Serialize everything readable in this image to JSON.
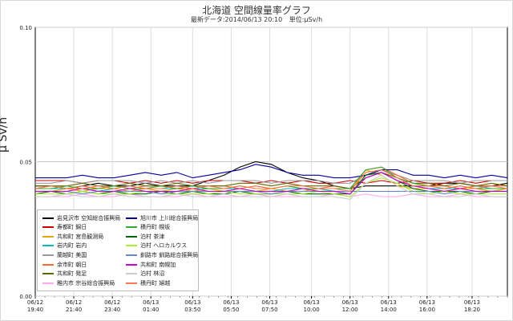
{
  "window": {
    "title": "北海道 空間線量率グラフ",
    "subtitle_latest": "最新データ:2014/06/13 20:10",
    "subtitle_unit": "単位:μSv/h"
  },
  "chart_data": {
    "type": "line",
    "title": "北海道 空間線量率グラフ",
    "ylabel": "μ Sv/h",
    "ylim": [
      0,
      0.1
    ],
    "yticks": [
      "0.10",
      "0.05",
      "0.00"
    ],
    "ytick_values": [
      0.1,
      0.05,
      0.0
    ],
    "xrange_minutes": [
      0,
      1470
    ],
    "xticks": [
      {
        "date": "06/12",
        "time": "19:40"
      },
      {
        "date": "06/12",
        "time": "21:40"
      },
      {
        "date": "06/12",
        "time": "23:40"
      },
      {
        "date": "06/13",
        "time": "01:40"
      },
      {
        "date": "06/13",
        "time": "03:50"
      },
      {
        "date": "06/13",
        "time": "05:50"
      },
      {
        "date": "06/13",
        "time": "07:50"
      },
      {
        "date": "06/13",
        "time": "10:00"
      },
      {
        "date": "06/13",
        "time": "12:00"
      },
      {
        "date": "06/13",
        "time": "14:00"
      },
      {
        "date": "06/13",
        "time": "16:00"
      },
      {
        "date": "06/13",
        "time": "18:20"
      }
    ],
    "xtick_minutes": [
      0,
      120,
      240,
      360,
      490,
      610,
      730,
      860,
      980,
      1100,
      1220,
      1360
    ],
    "grid": true,
    "legend_position": "bottom-left",
    "series": [
      {
        "name": "岩見沢市 空知総合振興局",
        "color": "#000000",
        "values": [
          0.041,
          0.041,
          0.04,
          0.041,
          0.042,
          0.041,
          0.041,
          0.042,
          0.041,
          0.041,
          0.041,
          0.043,
          0.045,
          0.048,
          0.05,
          0.049,
          0.046,
          0.044,
          0.043,
          0.041,
          0.04,
          0.041,
          0.041,
          0.041,
          0.041,
          0.041,
          0.042,
          0.042,
          0.041,
          0.041,
          0.042
        ]
      },
      {
        "name": "寿都町 錦日",
        "color": "#cc0000",
        "values": [
          0.043,
          0.043,
          0.043,
          0.042,
          0.043,
          0.043,
          0.042,
          0.043,
          0.042,
          0.043,
          0.042,
          0.043,
          0.043,
          0.043,
          0.042,
          0.043,
          0.042,
          0.043,
          0.042,
          0.042,
          0.043,
          0.042,
          0.043,
          0.042,
          0.043,
          0.042,
          0.042,
          0.043,
          0.042,
          0.043,
          0.043
        ]
      },
      {
        "name": "共和町 宮島観測局",
        "color": "#e6a800",
        "values": [
          0.039,
          0.039,
          0.04,
          0.039,
          0.04,
          0.04,
          0.039,
          0.04,
          0.039,
          0.04,
          0.039,
          0.04,
          0.039,
          0.039,
          0.039,
          0.04,
          0.039,
          0.039,
          0.04,
          0.039,
          0.039,
          0.047,
          0.045,
          0.041,
          0.04,
          0.04,
          0.039,
          0.04,
          0.04,
          0.039,
          0.04
        ]
      },
      {
        "name": "岩内町 岩内",
        "color": "#00bbbb",
        "values": [
          0.04,
          0.04,
          0.04,
          0.04,
          0.039,
          0.04,
          0.041,
          0.04,
          0.04,
          0.04,
          0.04,
          0.04,
          0.04,
          0.04,
          0.039,
          0.039,
          0.04,
          0.04,
          0.04,
          0.039,
          0.038,
          0.044,
          0.046,
          0.043,
          0.041,
          0.04,
          0.04,
          0.04,
          0.041,
          0.04,
          0.04
        ]
      },
      {
        "name": "蘭越町 美国",
        "color": "#999999",
        "values": [
          0.042,
          0.042,
          0.043,
          0.042,
          0.043,
          0.043,
          0.043,
          0.042,
          0.043,
          0.042,
          0.043,
          0.042,
          0.043,
          0.043,
          0.043,
          0.042,
          0.043,
          0.043,
          0.043,
          0.042,
          0.042,
          0.045,
          0.047,
          0.045,
          0.043,
          0.043,
          0.043,
          0.042,
          0.043,
          0.043,
          0.043
        ]
      },
      {
        "name": "余市町 朝日",
        "color": "#ff6633",
        "values": [
          0.04,
          0.041,
          0.04,
          0.041,
          0.04,
          0.041,
          0.04,
          0.041,
          0.041,
          0.04,
          0.04,
          0.041,
          0.041,
          0.04,
          0.041,
          0.04,
          0.041,
          0.04,
          0.04,
          0.041,
          0.04,
          0.047,
          0.048,
          0.045,
          0.042,
          0.041,
          0.041,
          0.04,
          0.041,
          0.041,
          0.041
        ]
      },
      {
        "name": "共和町 発足",
        "color": "#666600",
        "values": [
          0.041,
          0.041,
          0.041,
          0.042,
          0.041,
          0.041,
          0.042,
          0.041,
          0.041,
          0.042,
          0.041,
          0.041,
          0.041,
          0.042,
          0.042,
          0.041,
          0.042,
          0.041,
          0.041,
          0.041,
          0.04,
          0.044,
          0.046,
          0.044,
          0.042,
          0.042,
          0.041,
          0.042,
          0.041,
          0.042,
          0.041
        ]
      },
      {
        "name": "稚内市 宗谷総合振興局",
        "color": "#ffaaee",
        "values": [
          0.037,
          0.037,
          0.037,
          0.038,
          0.037,
          0.037,
          0.038,
          0.037,
          0.037,
          0.037,
          0.038,
          0.037,
          0.037,
          0.037,
          0.038,
          0.037,
          0.037,
          0.037,
          0.037,
          0.038,
          0.037,
          0.038,
          0.037,
          0.037,
          0.038,
          0.037,
          0.037,
          0.038,
          0.037,
          0.037,
          0.037
        ]
      },
      {
        "name": "旭川市 上川総合振興局",
        "color": "#000099",
        "values": [
          0.044,
          0.044,
          0.044,
          0.045,
          0.044,
          0.044,
          0.045,
          0.046,
          0.045,
          0.046,
          0.044,
          0.045,
          0.046,
          0.047,
          0.049,
          0.048,
          0.046,
          0.045,
          0.045,
          0.044,
          0.044,
          0.045,
          0.047,
          0.047,
          0.045,
          0.045,
          0.044,
          0.045,
          0.044,
          0.045,
          0.044
        ]
      },
      {
        "name": "積丹町 幌坂",
        "color": "#33aa33",
        "values": [
          0.04,
          0.04,
          0.041,
          0.04,
          0.04,
          0.041,
          0.04,
          0.04,
          0.041,
          0.04,
          0.041,
          0.04,
          0.04,
          0.041,
          0.04,
          0.04,
          0.041,
          0.04,
          0.04,
          0.04,
          0.04,
          0.047,
          0.048,
          0.044,
          0.042,
          0.041,
          0.04,
          0.041,
          0.04,
          0.04,
          0.04
        ]
      },
      {
        "name": "泊村 茶津",
        "color": "#006600",
        "values": [
          0.038,
          0.039,
          0.038,
          0.039,
          0.038,
          0.039,
          0.038,
          0.038,
          0.039,
          0.038,
          0.039,
          0.038,
          0.038,
          0.039,
          0.038,
          0.038,
          0.039,
          0.038,
          0.038,
          0.038,
          0.038,
          0.045,
          0.046,
          0.043,
          0.04,
          0.039,
          0.039,
          0.039,
          0.038,
          0.039,
          0.039
        ]
      },
      {
        "name": "泊村 ヘロカルウス",
        "color": "#aaee33",
        "values": [
          0.038,
          0.038,
          0.038,
          0.039,
          0.038,
          0.038,
          0.038,
          0.039,
          0.038,
          0.038,
          0.038,
          0.038,
          0.039,
          0.038,
          0.038,
          0.038,
          0.038,
          0.038,
          0.039,
          0.038,
          0.037,
          0.042,
          0.044,
          0.042,
          0.039,
          0.038,
          0.039,
          0.038,
          0.038,
          0.038,
          0.038
        ]
      },
      {
        "name": "釧路市 釧路総合振興局",
        "color": "#6688cc",
        "values": [
          0.039,
          0.039,
          0.039,
          0.038,
          0.039,
          0.039,
          0.039,
          0.039,
          0.038,
          0.039,
          0.039,
          0.039,
          0.039,
          0.039,
          0.039,
          0.038,
          0.039,
          0.039,
          0.039,
          0.039,
          0.039,
          0.039,
          0.039,
          0.039,
          0.039,
          0.039,
          0.038,
          0.039,
          0.039,
          0.039,
          0.039
        ]
      },
      {
        "name": "共和町 南幌加",
        "color": "#cc00cc",
        "values": [
          0.039,
          0.039,
          0.039,
          0.04,
          0.039,
          0.039,
          0.04,
          0.039,
          0.039,
          0.039,
          0.04,
          0.039,
          0.039,
          0.04,
          0.039,
          0.039,
          0.039,
          0.04,
          0.039,
          0.039,
          0.038,
          0.044,
          0.046,
          0.043,
          0.041,
          0.04,
          0.039,
          0.04,
          0.039,
          0.039,
          0.039
        ]
      },
      {
        "name": "泊村 林沼",
        "color": "#cccccc",
        "values": [
          0.037,
          0.037,
          0.038,
          0.037,
          0.037,
          0.038,
          0.037,
          0.037,
          0.037,
          0.038,
          0.037,
          0.037,
          0.038,
          0.037,
          0.037,
          0.037,
          0.038,
          0.037,
          0.037,
          0.037,
          0.036,
          0.042,
          0.045,
          0.041,
          0.038,
          0.038,
          0.037,
          0.037,
          0.038,
          0.037,
          0.037
        ]
      },
      {
        "name": "積丹町 婦越",
        "color": "#ff7755",
        "values": [
          0.04,
          0.041,
          0.04,
          0.04,
          0.041,
          0.04,
          0.041,
          0.04,
          0.04,
          0.041,
          0.04,
          0.041,
          0.04,
          0.041,
          0.04,
          0.04,
          0.041,
          0.041,
          0.04,
          0.04,
          0.039,
          0.046,
          0.047,
          0.044,
          0.041,
          0.041,
          0.04,
          0.041,
          0.04,
          0.041,
          0.04
        ]
      }
    ]
  }
}
